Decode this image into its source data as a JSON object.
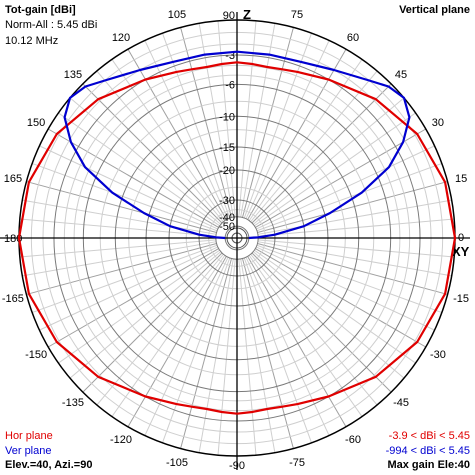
{
  "header": {
    "title": "Tot-gain [dBi]",
    "norm": "Norm-All : 5.45 dBi",
    "freq": "10.12 MHz",
    "view": "Vertical plane"
  },
  "footer": {
    "legend_hor": "Hor plane",
    "legend_ver": "Ver plane",
    "elev_azi": "Elev.=40, Azi.=90",
    "range_hor": "-3.9 < dBi < 5.45",
    "range_ver": "-994 < dBi < 5.45",
    "max_gain": "Max gain Ele:40"
  },
  "axis_labels": {
    "top": "Z",
    "right": "XY"
  },
  "colors": {
    "hor": "#e00000",
    "ver": "#0000d0"
  },
  "chart_data": {
    "type": "polar",
    "angle_unit": "deg",
    "angle_ticks": [
      0,
      15,
      30,
      45,
      60,
      75,
      90,
      105,
      120,
      135,
      150,
      165,
      180,
      -165,
      -150,
      -135,
      -120,
      -105,
      -90,
      -75,
      -60,
      -45,
      -30,
      -15
    ],
    "radial_ticks": [
      -3,
      -6,
      -10,
      -15,
      -20,
      -30,
      -40,
      -50
    ],
    "radial_scale": "log-periodic",
    "grid": true,
    "series": [
      {
        "name": "Hor plane",
        "color": "#e00000",
        "theta": [
          0,
          15,
          30,
          45,
          60,
          70,
          75,
          80,
          85,
          90,
          95,
          100,
          105,
          110,
          120,
          135,
          150,
          165,
          180,
          -165,
          -150,
          -135,
          -120,
          -110,
          -105,
          -100,
          -95,
          -90,
          -85,
          -80,
          -75,
          -70,
          -60,
          -45,
          -30,
          -15
        ],
        "r_db": [
          0,
          -0.2,
          -0.8,
          -1.8,
          -3.0,
          -3.6,
          -3.8,
          -3.9,
          -3.8,
          -3.7,
          -3.8,
          -3.9,
          -3.8,
          -3.6,
          -3.0,
          -1.8,
          -0.8,
          -0.2,
          0,
          -0.2,
          -0.8,
          -1.8,
          -3.0,
          -3.6,
          -3.8,
          -3.9,
          -3.8,
          -3.7,
          -3.8,
          -3.9,
          -3.8,
          -3.6,
          -3.0,
          -1.8,
          -0.8,
          -0.2
        ]
      },
      {
        "name": "Ver plane",
        "color": "#0000d0",
        "theta": [
          0,
          2,
          5,
          10,
          15,
          20,
          25,
          30,
          35,
          40,
          45,
          50,
          60,
          70,
          80,
          90,
          100,
          110,
          120,
          130,
          135,
          140,
          145,
          150,
          155,
          160,
          165,
          170,
          175,
          178,
          180
        ],
        "r_db": [
          -50,
          -40,
          -30,
          -20,
          -14,
          -8.5,
          -4.5,
          -2.2,
          -0.6,
          0,
          -0.3,
          -1.0,
          -2.0,
          -2.6,
          -2.7,
          -2.7,
          -2.7,
          -2.6,
          -2.0,
          -1.0,
          -0.3,
          0,
          -0.6,
          -2.2,
          -4.5,
          -8.5,
          -14,
          -20,
          -30,
          -40,
          -50
        ]
      }
    ]
  }
}
